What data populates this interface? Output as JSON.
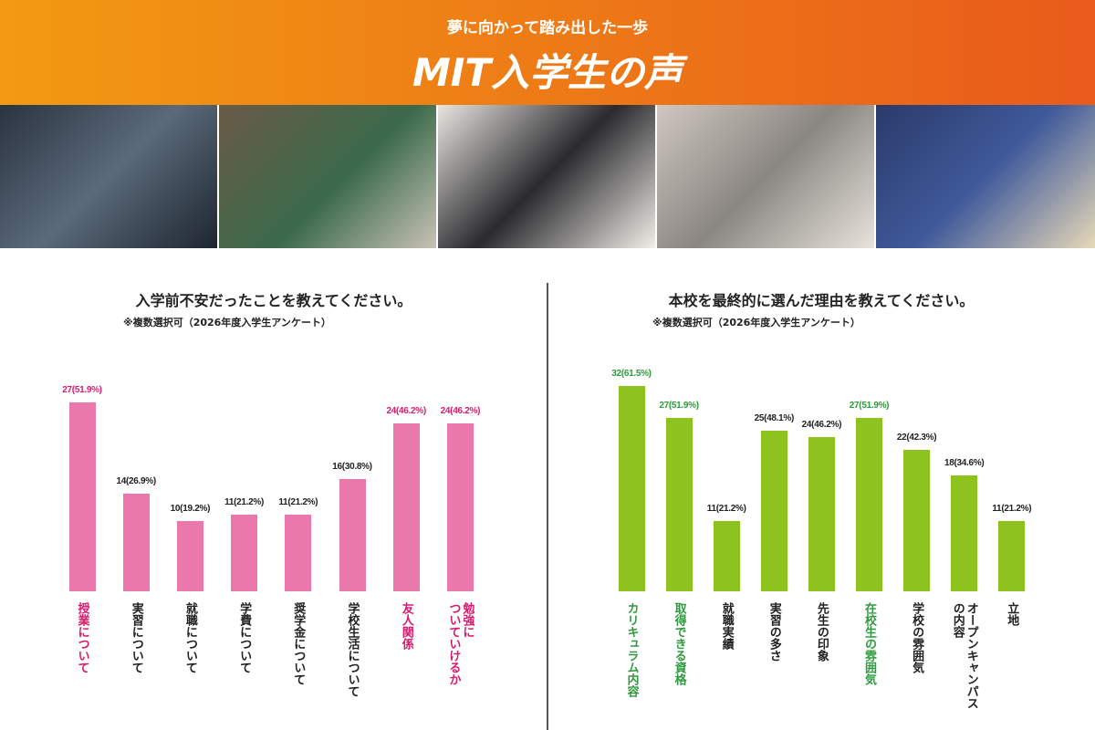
{
  "header": {
    "subtitle": "夢に向かって踏み出した一歩",
    "title": "MIT入学生の声"
  },
  "chart_data": [
    {
      "type": "bar",
      "title": "入学前不安だったことを教えてください。",
      "subtitle": "※複数選択可（2026年度入学生アンケート）",
      "categories": [
        "授業について",
        "実習について",
        "就職について",
        "学費について",
        "奨学金について",
        "学校生活について",
        "友人関係",
        "勉強に\nついていけるか"
      ],
      "values": [
        27,
        14,
        10,
        11,
        11,
        16,
        24,
        24
      ],
      "value_labels": [
        "27(51.9%)",
        "14(26.9%)",
        "10(19.2%)",
        "11(21.2%)",
        "11(21.2%)",
        "16(30.8%)",
        "24(46.2%)",
        "24(46.2%)"
      ],
      "color": "#ea78ab",
      "label_colors": [
        "#d81b6e",
        "#222222",
        "#222222",
        "#222222",
        "#222222",
        "#222222",
        "#d81b6e",
        "#d81b6e"
      ]
    },
    {
      "type": "bar",
      "title": "本校を最終的に選んだ理由を教えてください。",
      "subtitle": "※複数選択可（2026年度入学生アンケート）",
      "categories": [
        "カリキュラム内容",
        "取得できる資格",
        "就職実績",
        "実習の多さ",
        "先生の印象",
        "在校生の雰囲気",
        "学校の雰囲気",
        "オープンキャンパス\nの内容",
        "立地"
      ],
      "values": [
        32,
        27,
        11,
        25,
        24,
        27,
        22,
        18,
        11
      ],
      "value_labels": [
        "32(61.5%)",
        "27(51.9%)",
        "11(21.2%)",
        "25(48.1%)",
        "24(46.2%)",
        "27(51.9%)",
        "22(42.3%)",
        "18(34.6%)",
        "11(21.2%)"
      ],
      "color": "#8dc21f",
      "label_colors": [
        "#2e9a3e",
        "#2e9a3e",
        "#222222",
        "#222222",
        "#222222",
        "#2e9a3e",
        "#222222",
        "#222222",
        "#222222"
      ]
    }
  ]
}
